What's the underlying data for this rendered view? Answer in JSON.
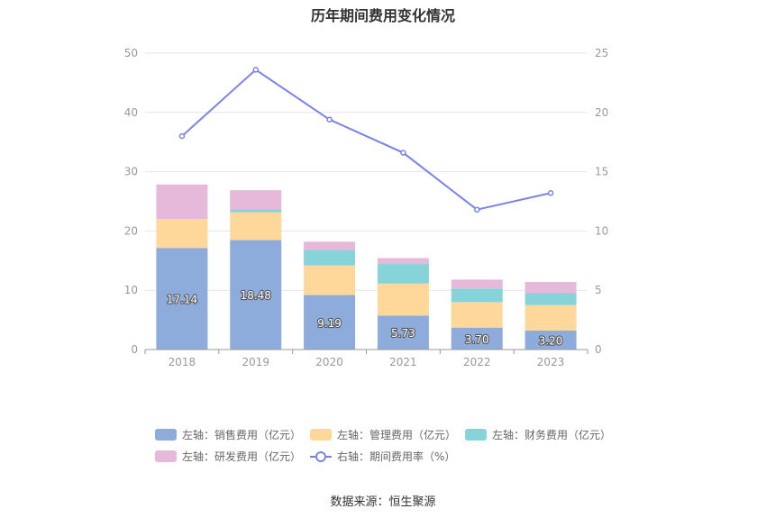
{
  "title": "历年期间费用变化情况",
  "source": "数据来源：恒生聚源",
  "colors": {
    "sales": "#8eacdb",
    "admin": "#fdd89a",
    "finance": "#86d4d9",
    "rd": "#e6b8d9",
    "ratio": "#7b83eb"
  },
  "legend": [
    {
      "key": "sales",
      "label": "左轴：销售费用（亿元）"
    },
    {
      "key": "admin",
      "label": "左轴：管理费用（亿元）"
    },
    {
      "key": "finance",
      "label": "左轴：财务费用（亿元）"
    },
    {
      "key": "rd",
      "label": "左轴：研发费用（亿元）"
    },
    {
      "key": "ratio",
      "label": "右轴：期间费用率（%）"
    }
  ],
  "chart_data": {
    "type": "bar",
    "stacked": true,
    "categories": [
      "2018",
      "2019",
      "2020",
      "2021",
      "2022",
      "2023"
    ],
    "series": [
      {
        "key": "sales",
        "name": "左轴：销售费用（亿元）",
        "axis": "left",
        "values": [
          17.14,
          18.48,
          9.19,
          5.73,
          3.7,
          3.2
        ],
        "labels": [
          "17.14",
          "18.48",
          "9.19",
          "5.73",
          "3.70",
          "3.20"
        ]
      },
      {
        "key": "admin",
        "name": "左轴：管理费用（亿元）",
        "axis": "left",
        "values": [
          4.9,
          4.7,
          5.0,
          5.4,
          4.3,
          4.3
        ]
      },
      {
        "key": "finance",
        "name": "左轴：财务费用（亿元）",
        "axis": "left",
        "values": [
          0.0,
          0.5,
          2.6,
          3.3,
          2.3,
          2.0
        ]
      },
      {
        "key": "rd",
        "name": "左轴：研发费用（亿元）",
        "axis": "left",
        "values": [
          5.8,
          3.2,
          1.4,
          1.0,
          1.5,
          1.9
        ]
      },
      {
        "key": "ratio",
        "name": "右轴：期间费用率（%）",
        "axis": "right",
        "type": "line",
        "values": [
          18.0,
          23.6,
          19.4,
          16.6,
          11.8,
          13.2
        ]
      }
    ],
    "ylim": [
      0,
      50
    ],
    "yticks": [
      0,
      10,
      20,
      30,
      40,
      50
    ],
    "y2lim": [
      0,
      25
    ],
    "y2ticks": [
      0,
      5,
      10,
      15,
      20,
      25
    ],
    "grid": true,
    "legend_position": "bottom"
  }
}
